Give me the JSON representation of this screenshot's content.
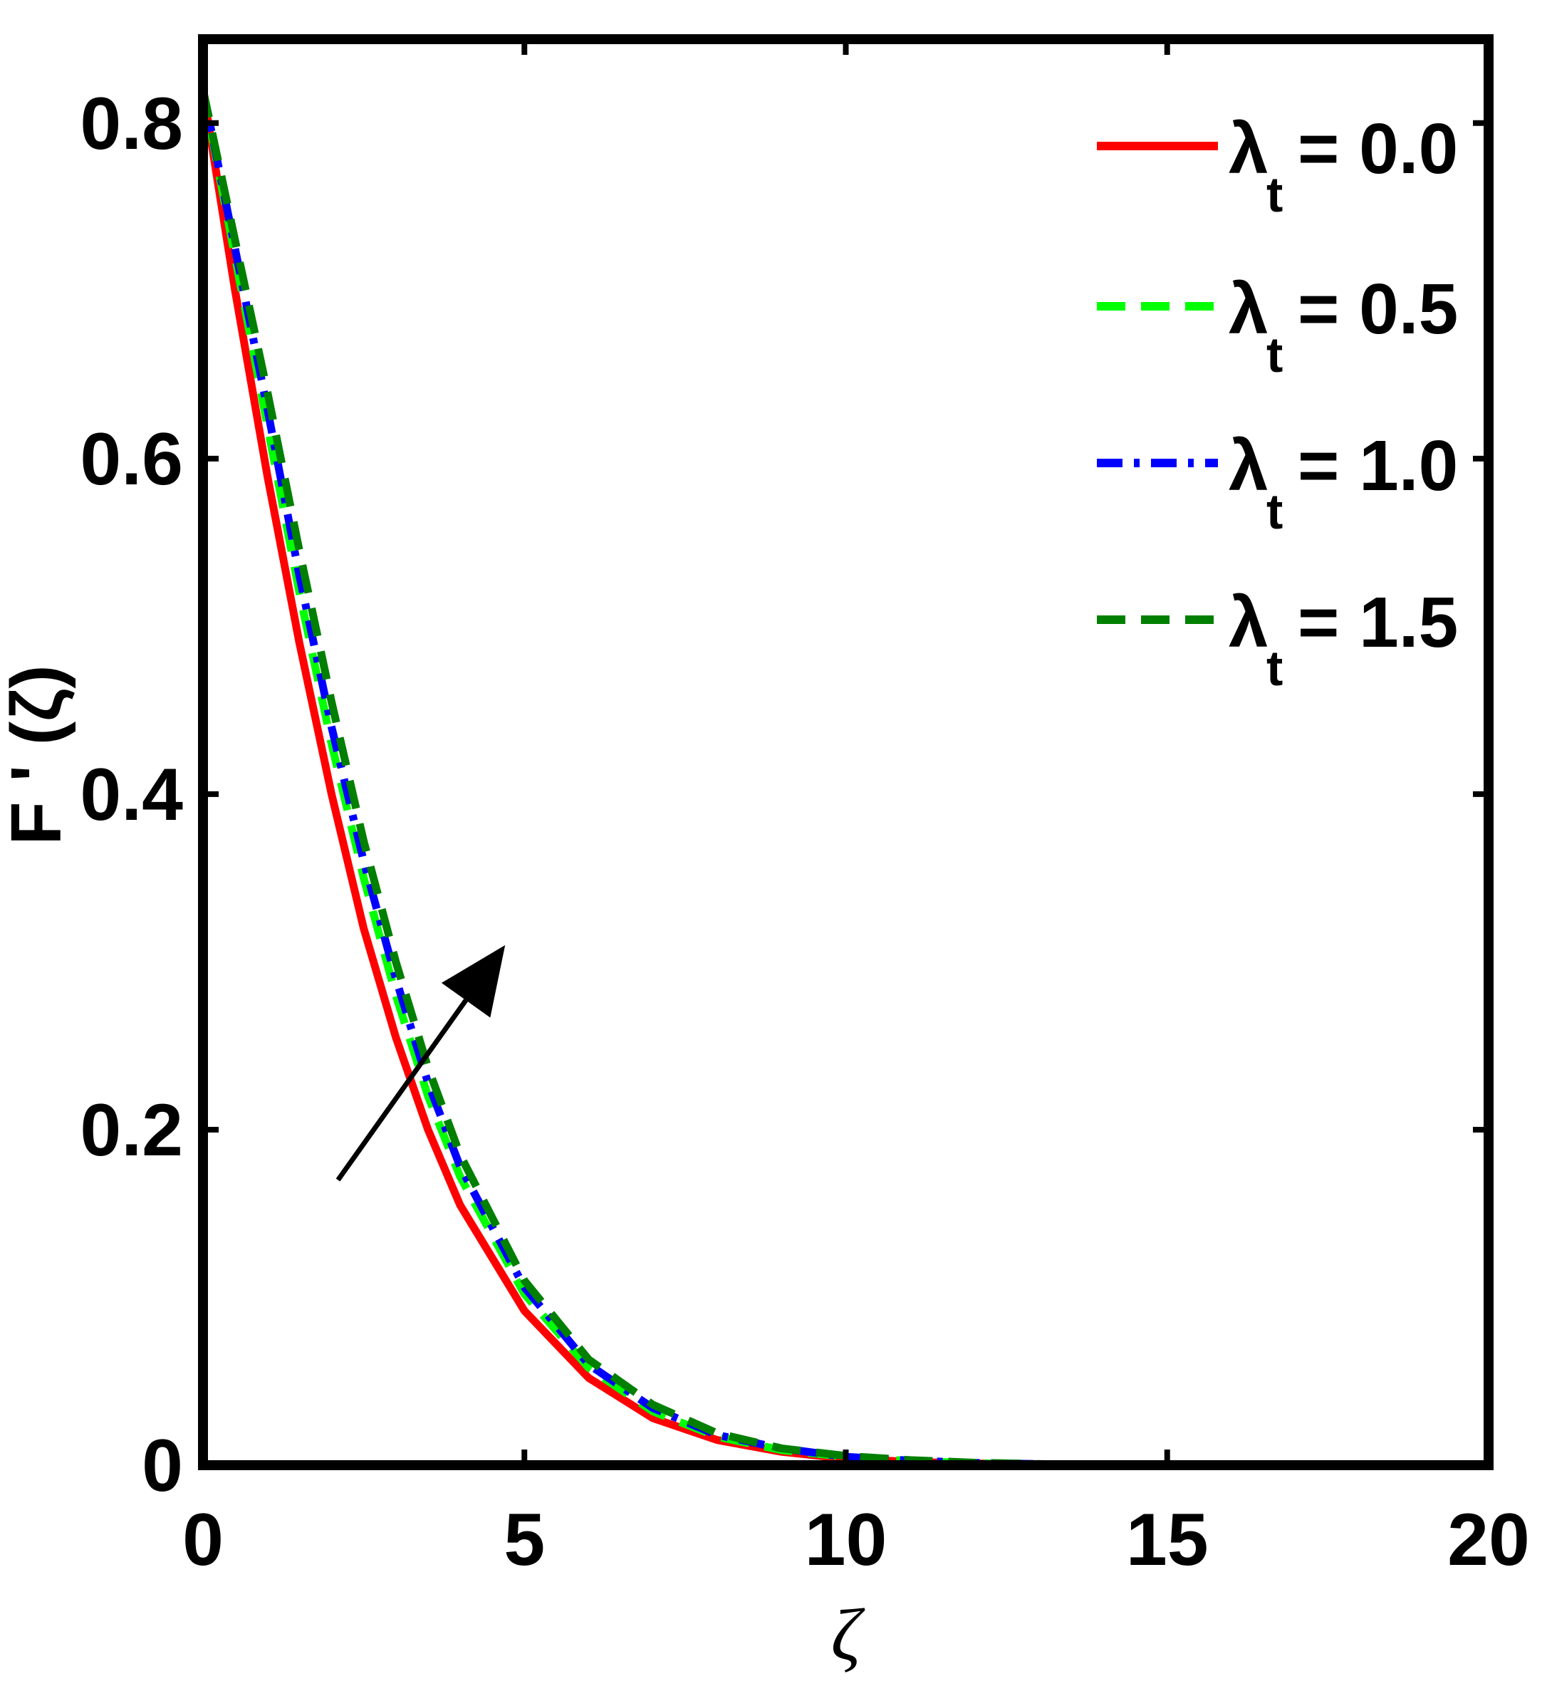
{
  "chart_data": {
    "type": "line",
    "xlabel": "ζ",
    "ylabel": "F ' (ζ)",
    "xlim": [
      0,
      20
    ],
    "ylim": [
      0,
      0.85
    ],
    "xticks": [
      0,
      5,
      10,
      15,
      20
    ],
    "xtick_labels": [
      "0",
      "5",
      "10",
      "15",
      "20"
    ],
    "yticks": [
      0,
      0.2,
      0.4,
      0.6,
      0.8
    ],
    "ytick_labels": [
      "0",
      "0.2",
      "0.4",
      "0.6",
      "0.8"
    ],
    "grid": false,
    "legend_position": "top-right",
    "annotations": [
      {
        "type": "arrow",
        "from": [
          2.1,
          0.17
        ],
        "to": [
          4.7,
          0.31
        ],
        "color": "#000000"
      }
    ],
    "series": [
      {
        "name": "λt = 0.0",
        "legend_symbol": "λ",
        "legend_sub": "t",
        "legend_value": "= 0.0",
        "color": "#ff0000",
        "dash": "solid",
        "x": [
          0,
          0.5,
          1,
          1.5,
          2,
          2.5,
          3,
          3.5,
          4,
          5,
          6,
          7,
          8,
          9,
          10,
          11,
          12,
          14,
          16,
          18,
          20
        ],
        "y": [
          0.82,
          0.7,
          0.59,
          0.49,
          0.4,
          0.32,
          0.255,
          0.2,
          0.155,
          0.092,
          0.052,
          0.028,
          0.015,
          0.008,
          0.004,
          0.002,
          0.001,
          0.0,
          0.0,
          0.0,
          0.0
        ]
      },
      {
        "name": "λt = 0.5",
        "legend_symbol": "λ",
        "legend_sub": "t",
        "legend_value": "= 0.5",
        "color": "#00ff00",
        "dash": "dashed",
        "x": [
          0,
          0.5,
          1,
          1.5,
          2,
          2.5,
          3,
          3.5,
          4,
          5,
          6,
          7,
          8,
          9,
          10,
          11,
          12,
          14,
          16,
          18,
          20
        ],
        "y": [
          0.82,
          0.72,
          0.62,
          0.52,
          0.43,
          0.35,
          0.28,
          0.22,
          0.172,
          0.102,
          0.058,
          0.032,
          0.017,
          0.009,
          0.005,
          0.0025,
          0.0012,
          0.0,
          0.0,
          0.0,
          0.0
        ]
      },
      {
        "name": "λt = 1.0",
        "legend_symbol": "λ",
        "legend_sub": "t",
        "legend_value": "= 1.0",
        "color": "#0000ff",
        "dash": "dashdot",
        "x": [
          0,
          0.5,
          1,
          1.5,
          2,
          2.5,
          3,
          3.5,
          4,
          5,
          6,
          7,
          8,
          9,
          10,
          11,
          12,
          14,
          16,
          18,
          20
        ],
        "y": [
          0.82,
          0.725,
          0.63,
          0.53,
          0.44,
          0.36,
          0.29,
          0.228,
          0.178,
          0.106,
          0.06,
          0.034,
          0.018,
          0.01,
          0.005,
          0.0027,
          0.0014,
          0.0,
          0.0,
          0.0,
          0.0
        ]
      },
      {
        "name": "λt = 1.5",
        "legend_symbol": "λ",
        "legend_sub": "t",
        "legend_value": "= 1.5",
        "color": "#007f00",
        "dash": "dashed",
        "x": [
          0,
          0.5,
          1,
          1.5,
          2,
          2.5,
          3,
          3.5,
          4,
          5,
          6,
          7,
          8,
          9,
          10,
          11,
          12,
          14,
          16,
          18,
          20
        ],
        "y": [
          0.82,
          0.73,
          0.64,
          0.545,
          0.455,
          0.372,
          0.3,
          0.237,
          0.185,
          0.11,
          0.063,
          0.036,
          0.019,
          0.01,
          0.0055,
          0.003,
          0.0015,
          0.0,
          0.0,
          0.0,
          0.0
        ]
      }
    ]
  }
}
